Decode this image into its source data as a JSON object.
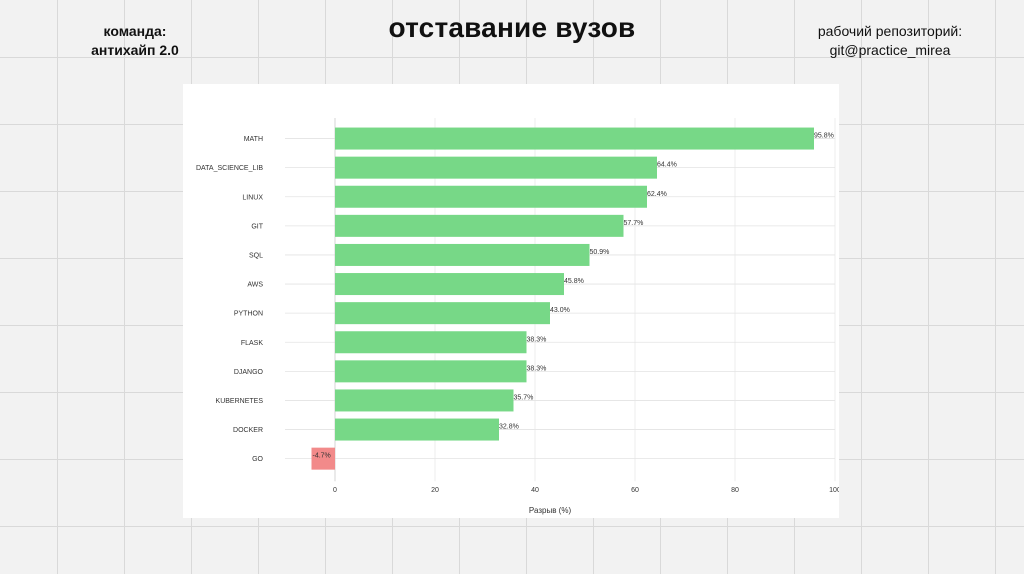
{
  "header": {
    "team_label": "команда:",
    "team_name": "антихайп 2.0",
    "title": "отставание вузов",
    "repo_label": "рабочий репозиторий:",
    "repo_value": "git@practice_mirea"
  },
  "chart_data": {
    "type": "bar",
    "orientation": "horizontal",
    "categories": [
      "MATH",
      "DATA_SCIENCE_LIB",
      "LINUX",
      "GIT",
      "SQL",
      "AWS",
      "PYTHON",
      "FLASK",
      "DJANGO",
      "KUBERNETES",
      "DOCKER",
      "GO"
    ],
    "values": [
      95.8,
      64.4,
      62.4,
      57.7,
      50.9,
      45.8,
      43.0,
      38.3,
      38.3,
      35.7,
      32.8,
      -4.7
    ],
    "data_labels": [
      "95.8%",
      "64.4%",
      "62.4%",
      "57.7%",
      "50.9%",
      "45.8%",
      "43.0%",
      "38.3%",
      "38.3%",
      "35.7%",
      "32.8%",
      "-4.7%"
    ],
    "xlabel": "Разрыв (%)",
    "ylabel": "",
    "xlim": [
      -10,
      100
    ],
    "xticks": [
      0,
      20,
      40,
      60,
      80,
      100
    ],
    "grid": true,
    "colors": {
      "positive": "#77d887",
      "negative": "#f28a8a",
      "grid": "#e3e3e3",
      "zero_line": "#cfcfcf"
    }
  }
}
